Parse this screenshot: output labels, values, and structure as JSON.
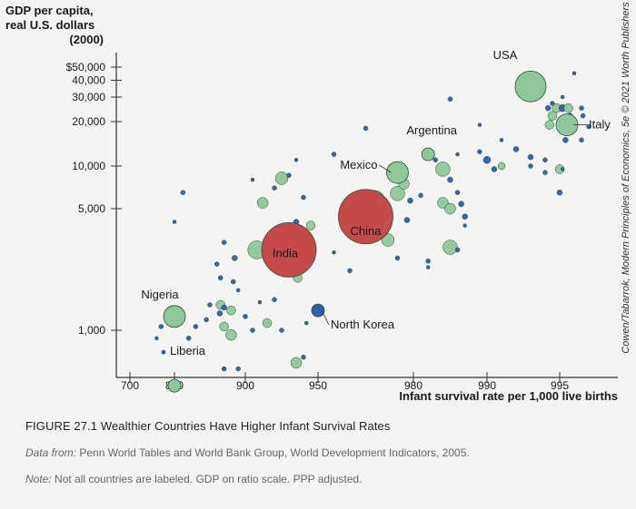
{
  "chart_data": {
    "type": "scatter",
    "ylabel": "GDP per capita, real U.S. dollars (2000)",
    "ylabel_lines": [
      "GDP per capita,",
      "real U.S. dollars",
      "(2000)"
    ],
    "xlabel": "Infant survival rate per 1,000 live births",
    "y_scale": "log",
    "y_ticks": [
      {
        "v": 50000,
        "label": "$50,000"
      },
      {
        "v": 40000,
        "label": "40,000"
      },
      {
        "v": 30000,
        "label": "30,000"
      },
      {
        "v": 20000,
        "label": "20,000"
      },
      {
        "v": 10000,
        "label": "10,000"
      },
      {
        "v": 5000,
        "label": "5,000"
      },
      {
        "v": 1000,
        "label": "1,000"
      }
    ],
    "x_ticks": [
      {
        "v": 700,
        "label": "700"
      },
      {
        "v": 800,
        "label": "800"
      },
      {
        "v": 900,
        "label": "900"
      },
      {
        "v": 950,
        "label": "950"
      },
      {
        "v": 980,
        "label": "980"
      },
      {
        "v": 990,
        "label": "990"
      },
      {
        "v": 995,
        "label": "995"
      }
    ],
    "labeled_points": [
      {
        "name": "USA",
        "x": 993,
        "y": 36000,
        "size": "large",
        "color": "#8fc79a"
      },
      {
        "name": "Italy",
        "x": 995.5,
        "y": 19000,
        "size": "medium",
        "color": "#8fc79a"
      },
      {
        "name": "Argentina",
        "x": 982,
        "y": 12000,
        "size": "small",
        "color": "#8fc79a"
      },
      {
        "name": "Mexico",
        "x": 975,
        "y": 9000,
        "size": "medium",
        "color": "#8fc79a"
      },
      {
        "name": "China",
        "x": 965,
        "y": 4500,
        "size": "huge",
        "color": "#c64a4a"
      },
      {
        "name": "India",
        "x": 930,
        "y": 2900,
        "size": "huge",
        "color": "#c64a4a"
      },
      {
        "name": "North Korea",
        "x": 950,
        "y": 1300,
        "size": "small",
        "color": "#2e5fa8"
      },
      {
        "name": "Nigeria",
        "x": 800,
        "y": 1200,
        "size": "medium",
        "color": "#8fc79a"
      },
      {
        "name": "Liberia",
        "x": 800,
        "y": 480,
        "size": "small",
        "color": "#8fc79a"
      }
    ],
    "other_points": [
      {
        "x": 812,
        "y": 6500,
        "c": "#2e5fa8",
        "s": 2.5
      },
      {
        "x": 800,
        "y": 4200,
        "c": "#2e5fa8",
        "s": 2
      },
      {
        "x": 885,
        "y": 2600,
        "c": "#2e5fa8",
        "s": 3
      },
      {
        "x": 870,
        "y": 3200,
        "c": "#2e5fa8",
        "s": 2.5
      },
      {
        "x": 865,
        "y": 2000,
        "c": "#2e5fa8",
        "s": 2.5
      },
      {
        "x": 860,
        "y": 2400,
        "c": "#2e5fa8",
        "s": 2.5
      },
      {
        "x": 850,
        "y": 1400,
        "c": "#2e5fa8",
        "s": 2.5
      },
      {
        "x": 845,
        "y": 1150,
        "c": "#2e5fa8",
        "s": 2.5
      },
      {
        "x": 830,
        "y": 1050,
        "c": "#2e5fa8",
        "s": 2.5
      },
      {
        "x": 820,
        "y": 900,
        "c": "#2e5fa8",
        "s": 2.5
      },
      {
        "x": 770,
        "y": 1050,
        "c": "#2e5fa8",
        "s": 2.5
      },
      {
        "x": 760,
        "y": 900,
        "c": "#2e5fa8",
        "s": 2
      },
      {
        "x": 870,
        "y": 1050,
        "c": "#8fc79a",
        "s": 5
      },
      {
        "x": 880,
        "y": 1300,
        "c": "#8fc79a",
        "s": 5
      },
      {
        "x": 865,
        "y": 1400,
        "c": "#8fc79a",
        "s": 5
      },
      {
        "x": 880,
        "y": 940,
        "c": "#8fc79a",
        "s": 6
      },
      {
        "x": 900,
        "y": 1200,
        "c": "#2e5fa8",
        "s": 2.5
      },
      {
        "x": 905,
        "y": 1000,
        "c": "#2e5fa8",
        "s": 2.5
      },
      {
        "x": 915,
        "y": 1100,
        "c": "#8fc79a",
        "s": 5
      },
      {
        "x": 920,
        "y": 1500,
        "c": "#2e5fa8",
        "s": 2.5
      },
      {
        "x": 925,
        "y": 1000,
        "c": "#2e5fa8",
        "s": 2.5
      },
      {
        "x": 908,
        "y": 2900,
        "c": "#8fc79a",
        "s": 10
      },
      {
        "x": 912,
        "y": 5500,
        "c": "#8fc79a",
        "s": 6
      },
      {
        "x": 925,
        "y": 8200,
        "c": "#8fc79a",
        "s": 7
      },
      {
        "x": 920,
        "y": 7000,
        "c": "#2e5fa8",
        "s": 2.5
      },
      {
        "x": 940,
        "y": 6000,
        "c": "#2e5fa8",
        "s": 2.5
      },
      {
        "x": 945,
        "y": 4000,
        "c": "#8fc79a",
        "s": 5
      },
      {
        "x": 935,
        "y": 4200,
        "c": "#2e5fa8",
        "s": 3
      },
      {
        "x": 930,
        "y": 8600,
        "c": "#2e5fa8",
        "s": 2.5
      },
      {
        "x": 935,
        "y": 11000,
        "c": "#2e5fa8",
        "s": 2
      },
      {
        "x": 905,
        "y": 8000,
        "c": "#2e5fa8",
        "s": 2
      },
      {
        "x": 935,
        "y": 650,
        "c": "#8fc79a",
        "s": 6
      },
      {
        "x": 940,
        "y": 700,
        "c": "#2e5fa8",
        "s": 2.5
      },
      {
        "x": 942,
        "y": 1100,
        "c": "#2e5fa8",
        "s": 2
      },
      {
        "x": 936,
        "y": 2000,
        "c": "#8fc79a",
        "s": 5
      },
      {
        "x": 960,
        "y": 2200,
        "c": "#2e5fa8",
        "s": 2.5
      },
      {
        "x": 968,
        "y": 5800,
        "c": "#8fc79a",
        "s": 10
      },
      {
        "x": 970,
        "y": 4600,
        "c": "#8fc79a",
        "s": 9
      },
      {
        "x": 965,
        "y": 3800,
        "c": "#8fc79a",
        "s": 8
      },
      {
        "x": 962,
        "y": 4300,
        "c": "#8fc79a",
        "s": 7
      },
      {
        "x": 975,
        "y": 6400,
        "c": "#8fc79a",
        "s": 8
      },
      {
        "x": 972,
        "y": 3300,
        "c": "#8fc79a",
        "s": 7
      },
      {
        "x": 978,
        "y": 4300,
        "c": "#2e5fa8",
        "s": 3
      },
      {
        "x": 979,
        "y": 5700,
        "c": "#2e5fa8",
        "s": 3
      },
      {
        "x": 981,
        "y": 6200,
        "c": "#2e5fa8",
        "s": 2.5
      },
      {
        "x": 977,
        "y": 7500,
        "c": "#8fc79a",
        "s": 6
      },
      {
        "x": 984,
        "y": 9500,
        "c": "#8fc79a",
        "s": 8
      },
      {
        "x": 983,
        "y": 11000,
        "c": "#2e5fa8",
        "s": 2.5
      },
      {
        "x": 985,
        "y": 8000,
        "c": "#2e5fa8",
        "s": 3
      },
      {
        "x": 986,
        "y": 12000,
        "c": "#2e5fa8",
        "s": 2
      },
      {
        "x": 984,
        "y": 5500,
        "c": "#8fc79a",
        "s": 6
      },
      {
        "x": 985,
        "y": 5000,
        "c": "#8fc79a",
        "s": 6
      },
      {
        "x": 986.5,
        "y": 5400,
        "c": "#2e5fa8",
        "s": 3
      },
      {
        "x": 986,
        "y": 6500,
        "c": "#2e5fa8",
        "s": 2.5
      },
      {
        "x": 987,
        "y": 4500,
        "c": "#2e5fa8",
        "s": 3
      },
      {
        "x": 985,
        "y": 3000,
        "c": "#8fc79a",
        "s": 8
      },
      {
        "x": 986,
        "y": 2900,
        "c": "#2e5fa8",
        "s": 2.5
      },
      {
        "x": 987,
        "y": 4000,
        "c": "#2e5fa8",
        "s": 2
      },
      {
        "x": 982,
        "y": 2300,
        "c": "#2e5fa8",
        "s": 2
      },
      {
        "x": 989,
        "y": 12500,
        "c": "#2e5fa8",
        "s": 2.5
      },
      {
        "x": 989,
        "y": 19000,
        "c": "#2e5fa8",
        "s": 2
      },
      {
        "x": 990,
        "y": 11000,
        "c": "#2e5fa8",
        "s": 4
      },
      {
        "x": 991,
        "y": 10000,
        "c": "#8fc79a",
        "s": 4
      },
      {
        "x": 990.5,
        "y": 9500,
        "c": "#2e5fa8",
        "s": 3
      },
      {
        "x": 991,
        "y": 15000,
        "c": "#2e5fa8",
        "s": 2
      },
      {
        "x": 992,
        "y": 13000,
        "c": "#2e5fa8",
        "s": 3
      },
      {
        "x": 993,
        "y": 11500,
        "c": "#2e5fa8",
        "s": 3
      },
      {
        "x": 993,
        "y": 10000,
        "c": "#2e5fa8",
        "s": 2.5
      },
      {
        "x": 994,
        "y": 11000,
        "c": "#2e5fa8",
        "s": 2.5
      },
      {
        "x": 994,
        "y": 9000,
        "c": "#2e5fa8",
        "s": 2.5
      },
      {
        "x": 995,
        "y": 9500,
        "c": "#8fc79a",
        "s": 5
      },
      {
        "x": 995.2,
        "y": 9500,
        "c": "#2e5fa8",
        "s": 2
      },
      {
        "x": 995,
        "y": 6500,
        "c": "#2e5fa8",
        "s": 3
      },
      {
        "x": 994.2,
        "y": 25000,
        "c": "#2e5fa8",
        "s": 3
      },
      {
        "x": 994.5,
        "y": 27000,
        "c": "#2e5fa8",
        "s": 2.5
      },
      {
        "x": 994.5,
        "y": 22000,
        "c": "#8fc79a",
        "s": 5
      },
      {
        "x": 994.3,
        "y": 19000,
        "c": "#8fc79a",
        "s": 5
      },
      {
        "x": 994.8,
        "y": 25000,
        "c": "#8fc79a",
        "s": 5
      },
      {
        "x": 995.1,
        "y": 19500,
        "c": "#2e5fa8",
        "s": 3
      },
      {
        "x": 995.2,
        "y": 25000,
        "c": "#2e5fa8",
        "s": 4
      },
      {
        "x": 995.2,
        "y": 30000,
        "c": "#2e5fa8",
        "s": 2
      },
      {
        "x": 995.6,
        "y": 25000,
        "c": "#8fc79a",
        "s": 5
      },
      {
        "x": 995.7,
        "y": 22000,
        "c": "#2e5fa8",
        "s": 3
      },
      {
        "x": 995.8,
        "y": 17000,
        "c": "#2e5fa8",
        "s": 3
      },
      {
        "x": 995.4,
        "y": 15000,
        "c": "#2e5fa8",
        "s": 3
      },
      {
        "x": 996,
        "y": 45000,
        "c": "#2e5fa8",
        "s": 2
      },
      {
        "x": 996.5,
        "y": 25000,
        "c": "#2e5fa8",
        "s": 2.5
      },
      {
        "x": 996.6,
        "y": 22000,
        "c": "#2e5fa8",
        "s": 2.5
      },
      {
        "x": 997,
        "y": 18500,
        "c": "#2e5fa8",
        "s": 2.5
      },
      {
        "x": 996.5,
        "y": 15000,
        "c": "#2e5fa8",
        "s": 2.5
      },
      {
        "x": 985,
        "y": 29000,
        "c": "#2e5fa8",
        "s": 2.5
      },
      {
        "x": 955,
        "y": 12000,
        "c": "#2e5fa8",
        "s": 2.5
      },
      {
        "x": 965,
        "y": 18000,
        "c": "#2e5fa8",
        "s": 2.5
      },
      {
        "x": 973,
        "y": 10000,
        "c": "#2e5fa8",
        "s": 2.5
      },
      {
        "x": 975,
        "y": 2600,
        "c": "#2e5fa8",
        "s": 2.5
      },
      {
        "x": 982,
        "y": 2500,
        "c": "#2e5fa8",
        "s": 2.5
      },
      {
        "x": 955,
        "y": 2800,
        "c": "#2e5fa8",
        "s": 2
      },
      {
        "x": 870,
        "y": 600,
        "c": "#2e5fa8",
        "s": 2.5
      },
      {
        "x": 890,
        "y": 600,
        "c": "#2e5fa8",
        "s": 2.5
      },
      {
        "x": 890,
        "y": 1700,
        "c": "#2e5fa8",
        "s": 2
      },
      {
        "x": 883,
        "y": 1900,
        "c": "#2e5fa8",
        "s": 2.5
      },
      {
        "x": 910,
        "y": 1450,
        "c": "#2e5fa8",
        "s": 2
      },
      {
        "x": 870,
        "y": 1350,
        "c": "#2e5fa8",
        "s": 3
      },
      {
        "x": 864,
        "y": 1250,
        "c": "#2e5fa8",
        "s": 3
      }
    ],
    "colors": {
      "green": "#8fc79a",
      "red": "#c64a4a",
      "blue": "#2e5fa8"
    }
  },
  "copyright_text": "Cowen/Tabarrok, Modern Principles of Economics, 5e © 2021 Worth Publishers",
  "caption": {
    "title": "FIGURE 27.1 Wealthier Countries Have Higher Infant Survival Rates",
    "source_prefix": "Data from:",
    "source_text": " Penn World Tables and World Bank Group, World Development Indicators, 2005.",
    "note_prefix": "Note:",
    "note_text": " Not all countries are labeled. GDP on ratio scale. PPP adjusted."
  }
}
